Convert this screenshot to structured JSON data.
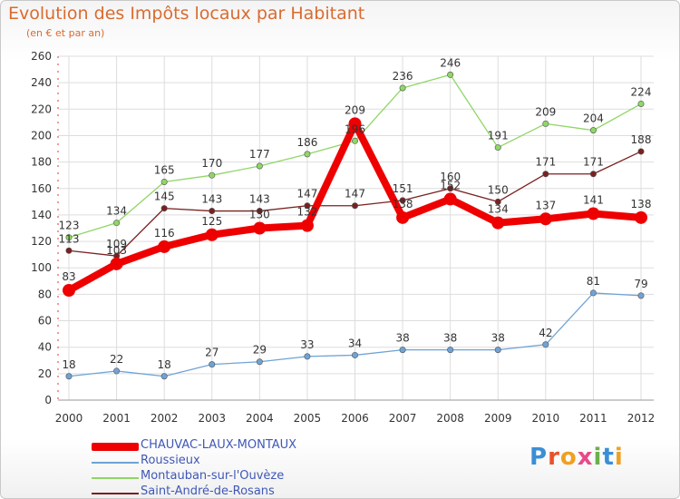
{
  "title": "Evolution des Impôts locaux par Habitant",
  "subtitle": "(en € et par an)",
  "logo_text": "Proxiti",
  "chart_data": {
    "type": "line",
    "title": "Evolution des Impôts locaux par Habitant",
    "subtitle": "(en € et par an)",
    "categories": [
      "2000",
      "2001",
      "2002",
      "2003",
      "2004",
      "2005",
      "2006",
      "2007",
      "2008",
      "2009",
      "2010",
      "2011",
      "2012"
    ],
    "y_ticks": [
      "0",
      "20",
      "40",
      "60",
      "80",
      "100",
      "120",
      "140",
      "160",
      "180",
      "200",
      "220",
      "240",
      "260"
    ],
    "ylim": [
      0,
      260
    ],
    "grid": true,
    "legend_position": "bottom-left",
    "series": [
      {
        "name": "CHAUVAC-LAUX-MONTAUX",
        "color": "#ee0000",
        "values": [
          83,
          103,
          116,
          125,
          130,
          132,
          209,
          138,
          152,
          134,
          137,
          141,
          138
        ]
      },
      {
        "name": "Roussieux",
        "color": "#6fa3d6",
        "values": [
          18,
          22,
          18,
          27,
          29,
          33,
          34,
          38,
          38,
          38,
          42,
          81,
          79
        ]
      },
      {
        "name": "Montauban-sur-l'Ouvèze",
        "color": "#8fd667",
        "values": [
          123,
          134,
          165,
          170,
          177,
          186,
          196,
          236,
          246,
          191,
          209,
          204,
          224
        ]
      },
      {
        "name": "Saint-André-de-Rosans",
        "color": "#7a2020",
        "values": [
          113,
          109,
          145,
          143,
          143,
          147,
          147,
          151,
          160,
          150,
          171,
          171,
          188
        ]
      }
    ]
  }
}
